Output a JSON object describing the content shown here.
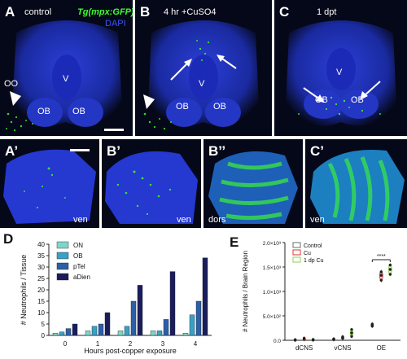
{
  "panels": {
    "A": {
      "label": "A",
      "title": "control",
      "marker_green": "Tg(mpx:GFP)",
      "marker_blue": "DAPI",
      "oo": "OO",
      "ob_left": "OB",
      "ob_right": "OB"
    },
    "B": {
      "label": "B",
      "title": "4 hr +CuSO4",
      "v": "V",
      "ob_left": "OB",
      "ob_right": "OB"
    },
    "C": {
      "label": "C",
      "title": "1 dpt",
      "v": "V",
      "ob_left": "OB",
      "ob_right": "OB"
    },
    "A2": {
      "label": "A’",
      "view": "ven"
    },
    "B2": {
      "label": "B’",
      "view": "ven"
    },
    "B3": {
      "label": "B’’",
      "view": "dors"
    },
    "C2": {
      "label": "C’",
      "view": "ven"
    },
    "A_v": "V"
  },
  "colors": {
    "dapi": "#2235c8",
    "gfp": "#3cff2a",
    "bg": "#050818"
  },
  "chart_data": [
    {
      "panel": "D",
      "type": "bar",
      "categories": [
        "0",
        "1",
        "2",
        "3",
        "4"
      ],
      "series": [
        {
          "name": "ON",
          "color": "#7fd6c8",
          "values": [
            1,
            2,
            2,
            2,
            1
          ]
        },
        {
          "name": "OB",
          "color": "#3aa0c4",
          "values": [
            1.5,
            4,
            4,
            2,
            9
          ]
        },
        {
          "name": "pTel",
          "color": "#2c5fa8",
          "values": [
            3,
            5,
            15,
            7,
            15
          ]
        },
        {
          "name": "aDien",
          "color": "#1a1d5c",
          "values": [
            5,
            10,
            22,
            28,
            34
          ]
        }
      ],
      "xlabel": "Hours post-copper exposure",
      "ylabel": "# Neutrophils / Tissue",
      "ylim": [
        0,
        40
      ],
      "yticks": [
        "0",
        "5",
        "10",
        "15",
        "20",
        "25",
        "30",
        "35",
        "40"
      ],
      "legend_position": "top-left",
      "grid": false
    },
    {
      "panel": "E",
      "type": "violin",
      "categories": [
        "dCNS",
        "vCNS",
        "OE"
      ],
      "series": [
        {
          "name": "Control",
          "color": "#6e6e6e",
          "points": [
            [
              5,
              8,
              10
            ],
            [
              15,
              20,
              25
            ],
            [
              290,
              310,
              330
            ]
          ]
        },
        {
          "name": "Cu",
          "color": "#e3342f",
          "points": [
            [
              20,
              30,
              40
            ],
            [
              40,
              55,
              70
            ],
            [
              1230,
              1330,
              1400
            ]
          ]
        },
        {
          "name": "1 dp Cu",
          "color": "#8fd14f",
          "points": [
            [
              5,
              10,
              15
            ],
            [
              80,
              150,
              220
            ],
            [
              1350,
              1450,
              1540
            ]
          ]
        }
      ],
      "ylabel": "# Neutrophils / Brain Region",
      "ylim": [
        0,
        2000
      ],
      "yticks": [
        "0.0",
        "5.0×10²",
        "1.0×10³",
        "1.5×10³",
        "2.0×10³"
      ],
      "significance": "****",
      "legend_position": "top-left",
      "grid": false
    }
  ],
  "figure_labels": {
    "D": "D",
    "E": "E"
  }
}
